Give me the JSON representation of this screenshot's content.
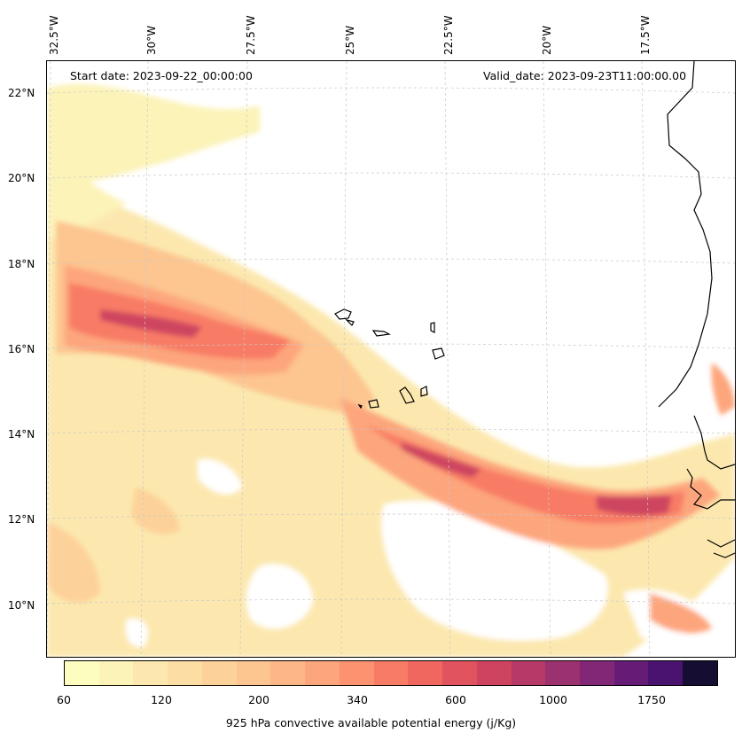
{
  "header": {
    "start_date": "Start date: 2023-09-22_00:00:00",
    "valid_date": "Valid_date: 2023-09-23T11:00:00.00"
  },
  "axes": {
    "longitude_labels": [
      "32.5°W",
      "30°W",
      "27.5°W",
      "25°W",
      "22.5°W",
      "20°W",
      "17.5°W"
    ],
    "latitude_labels": [
      "22°N",
      "20°N",
      "18°N",
      "16°N",
      "14°N",
      "12°N",
      "10°N"
    ]
  },
  "colorbar": {
    "title": "925 hPa convective available potential energy (j/Kg)",
    "tick_labels": [
      "60",
      "120",
      "200",
      "340",
      "600",
      "1000",
      "1750"
    ],
    "colors": [
      "#fcfdbf",
      "#fcf3b8",
      "#fce8ae",
      "#fcdda4",
      "#fdd29a",
      "#fdc590",
      "#fdb687",
      "#fda67d",
      "#fc9270",
      "#f87c65",
      "#ef675f",
      "#e1535e",
      "#ce4460",
      "#b63a68",
      "#9c3170",
      "#812776",
      "#661c77",
      "#4a136f",
      "#160d33"
    ]
  }
}
